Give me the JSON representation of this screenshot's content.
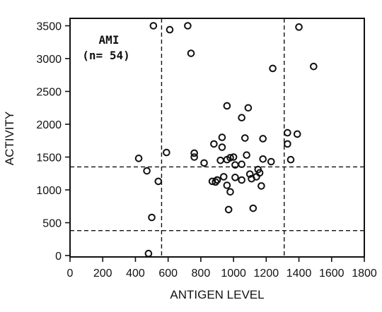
{
  "chart_data": {
    "type": "scatter",
    "title": "",
    "xlabel": "ANTIGEN LEVEL",
    "ylabel": "ACTIVITY",
    "xlim": [
      0,
      1800
    ],
    "ylim": [
      0,
      3600
    ],
    "xticks": [
      0,
      200,
      400,
      600,
      800,
      1000,
      1200,
      1400,
      1600,
      1800
    ],
    "yticks": [
      0,
      500,
      1000,
      1500,
      2000,
      2500,
      3000,
      3500
    ],
    "grid": false,
    "annotation": {
      "line1": "AMI",
      "line2": "(n= 54)"
    },
    "reference_lines": {
      "vertical": [
        560,
        1310
      ],
      "horizontal": [
        1350,
        380
      ]
    },
    "series": [
      {
        "points": [
          [
            510,
            3500
          ],
          [
            610,
            3440
          ],
          [
            720,
            3500
          ],
          [
            740,
            3080
          ],
          [
            1400,
            3480
          ],
          [
            1240,
            2850
          ],
          [
            1490,
            2880
          ],
          [
            960,
            2280
          ],
          [
            1090,
            2250
          ],
          [
            1050,
            2100
          ],
          [
            1330,
            1870
          ],
          [
            1390,
            1850
          ],
          [
            930,
            1800
          ],
          [
            1070,
            1790
          ],
          [
            1180,
            1780
          ],
          [
            880,
            1700
          ],
          [
            930,
            1650
          ],
          [
            1330,
            1700
          ],
          [
            590,
            1570
          ],
          [
            760,
            1560
          ],
          [
            760,
            1500
          ],
          [
            1000,
            1500
          ],
          [
            980,
            1490
          ],
          [
            1080,
            1530
          ],
          [
            1180,
            1470
          ],
          [
            1350,
            1460
          ],
          [
            1230,
            1430
          ],
          [
            420,
            1480
          ],
          [
            920,
            1450
          ],
          [
            820,
            1410
          ],
          [
            1050,
            1390
          ],
          [
            1010,
            1380
          ],
          [
            470,
            1290
          ],
          [
            1150,
            1310
          ],
          [
            1100,
            1240
          ],
          [
            940,
            1200
          ],
          [
            1010,
            1190
          ],
          [
            900,
            1150
          ],
          [
            870,
            1130
          ],
          [
            890,
            1120
          ],
          [
            1110,
            1170
          ],
          [
            1140,
            1200
          ],
          [
            540,
            1130
          ],
          [
            960,
            1070
          ],
          [
            1170,
            1060
          ],
          [
            980,
            970
          ],
          [
            970,
            700
          ],
          [
            1120,
            720
          ],
          [
            500,
            580
          ],
          [
            480,
            30
          ],
          [
            1160,
            1260
          ],
          [
            960,
            1460
          ],
          [
            900,
            1150
          ],
          [
            1050,
            1150
          ]
        ]
      }
    ]
  }
}
